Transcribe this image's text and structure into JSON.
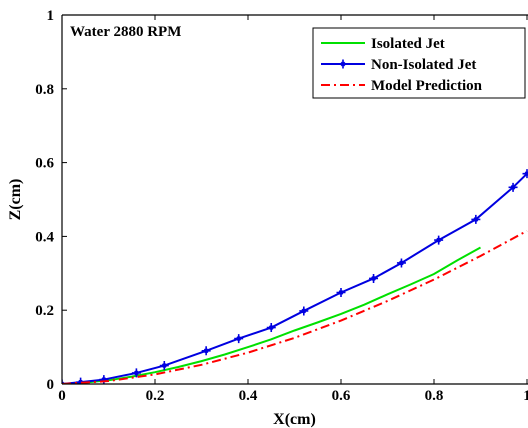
{
  "chart_data": {
    "type": "line",
    "annotation": "Water 2880 RPM",
    "xlabel": "X(cm)",
    "ylabel": "Z(cm)",
    "xlim": [
      0,
      1
    ],
    "ylim": [
      0,
      1
    ],
    "xticks": [
      "0",
      "0.2",
      "0.4",
      "0.6",
      "0.8",
      "1"
    ],
    "yticks": [
      "0",
      "0.2",
      "0.4",
      "0.6",
      "0.8",
      "1"
    ],
    "grid": false,
    "legend_position": "top-right",
    "series": [
      {
        "name": "Isolated Jet",
        "color": "#00e000",
        "style": "solid",
        "marker": "none",
        "x": [
          0.0,
          0.05,
          0.1,
          0.15,
          0.2,
          0.25,
          0.3,
          0.35,
          0.4,
          0.45,
          0.5,
          0.55,
          0.6,
          0.65,
          0.7,
          0.75,
          0.8,
          0.85,
          0.9
        ],
        "y": [
          0.0,
          0.004,
          0.01,
          0.02,
          0.032,
          0.046,
          0.062,
          0.08,
          0.1,
          0.121,
          0.145,
          0.167,
          0.19,
          0.215,
          0.243,
          0.27,
          0.298,
          0.335,
          0.37
        ]
      },
      {
        "name": "Non-Isolated Jet",
        "color": "#0000e0",
        "style": "solid",
        "marker": "star",
        "x": [
          0.0,
          0.04,
          0.09,
          0.16,
          0.22,
          0.31,
          0.38,
          0.45,
          0.52,
          0.6,
          0.67,
          0.73,
          0.81,
          0.89,
          0.97,
          1.0
        ],
        "y": [
          0.0,
          0.005,
          0.012,
          0.03,
          0.05,
          0.09,
          0.123,
          0.153,
          0.198,
          0.248,
          0.286,
          0.328,
          0.39,
          0.446,
          0.533,
          0.57
        ]
      },
      {
        "name": "Model Prediction",
        "color": "#ff0000",
        "style": "dash-dot",
        "marker": "none",
        "x": [
          0.0,
          0.1,
          0.2,
          0.3,
          0.4,
          0.5,
          0.6,
          0.7,
          0.8,
          0.9,
          1.0
        ],
        "y": [
          0.0,
          0.008,
          0.026,
          0.052,
          0.085,
          0.125,
          0.172,
          0.225,
          0.283,
          0.347,
          0.415
        ]
      }
    ]
  }
}
